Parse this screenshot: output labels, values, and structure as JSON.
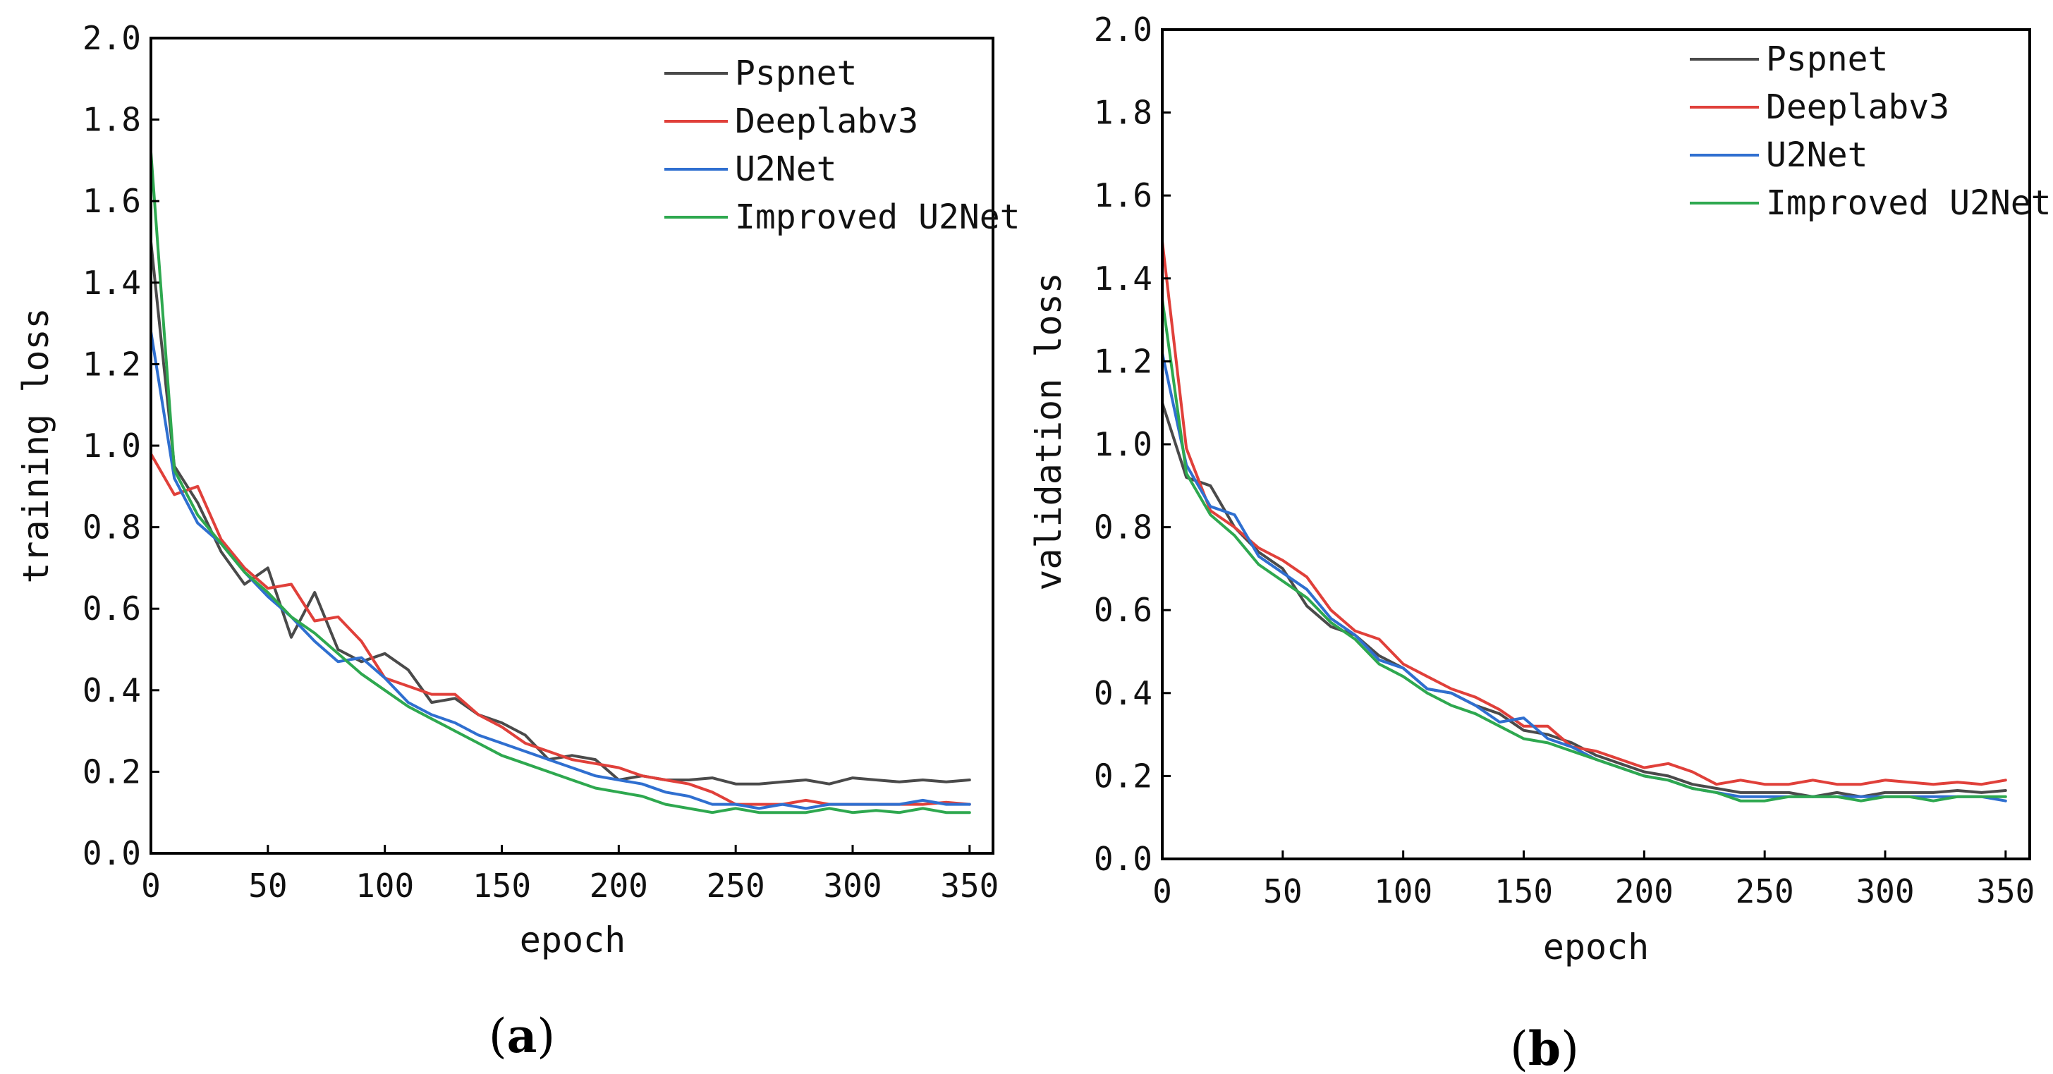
{
  "chart_data": [
    {
      "type": "line",
      "panel": "a",
      "caption": {
        "open": "(",
        "letter": "a",
        "close": ")"
      },
      "xlabel": "epoch",
      "ylabel": "training loss",
      "xlim": [
        0,
        360
      ],
      "ylim": [
        0,
        2.0
      ],
      "xticks": [
        0,
        50,
        100,
        150,
        200,
        250,
        300,
        350
      ],
      "yticks": [
        0.0,
        0.2,
        0.4,
        0.6,
        0.8,
        1.0,
        1.2,
        1.4,
        1.6,
        1.8,
        2.0
      ],
      "xtick_labels": [
        "0",
        "50",
        "100",
        "150",
        "200",
        "250",
        "300",
        "350"
      ],
      "ytick_labels": [
        "0.0",
        "0.2",
        "0.4",
        "0.6",
        "0.8",
        "1.0",
        "1.2",
        "1.4",
        "1.6",
        "1.8",
        "2.0"
      ],
      "legend_position": "top-right",
      "x": [
        0,
        10,
        20,
        30,
        40,
        50,
        60,
        70,
        80,
        90,
        100,
        110,
        120,
        130,
        140,
        150,
        160,
        170,
        180,
        190,
        200,
        210,
        220,
        230,
        240,
        250,
        260,
        270,
        280,
        290,
        300,
        310,
        320,
        330,
        340,
        350
      ],
      "series": [
        {
          "name": "Pspnet",
          "color": "#4a4a4a",
          "values": [
            1.5,
            0.95,
            0.86,
            0.74,
            0.66,
            0.7,
            0.53,
            0.64,
            0.5,
            0.47,
            0.49,
            0.45,
            0.37,
            0.38,
            0.34,
            0.32,
            0.29,
            0.23,
            0.24,
            0.23,
            0.18,
            0.19,
            0.18,
            0.18,
            0.185,
            0.17,
            0.17,
            0.175,
            0.18,
            0.17,
            0.185,
            0.18,
            0.175,
            0.18,
            0.175,
            0.18
          ]
        },
        {
          "name": "Deeplabv3",
          "color": "#e0403a",
          "values": [
            0.98,
            0.88,
            0.9,
            0.77,
            0.7,
            0.65,
            0.66,
            0.57,
            0.58,
            0.52,
            0.43,
            0.41,
            0.39,
            0.39,
            0.34,
            0.31,
            0.27,
            0.25,
            0.23,
            0.22,
            0.21,
            0.19,
            0.18,
            0.17,
            0.15,
            0.12,
            0.12,
            0.12,
            0.13,
            0.12,
            0.12,
            0.12,
            0.12,
            0.12,
            0.125,
            0.12
          ]
        },
        {
          "name": "U2Net",
          "color": "#2f6fd0",
          "values": [
            1.28,
            0.92,
            0.81,
            0.76,
            0.69,
            0.63,
            0.58,
            0.52,
            0.47,
            0.48,
            0.43,
            0.37,
            0.34,
            0.32,
            0.29,
            0.27,
            0.25,
            0.23,
            0.21,
            0.19,
            0.18,
            0.17,
            0.15,
            0.14,
            0.12,
            0.12,
            0.11,
            0.12,
            0.11,
            0.12,
            0.12,
            0.12,
            0.12,
            0.13,
            0.12,
            0.12
          ]
        },
        {
          "name": "Improved U2Net",
          "color": "#2ea84f",
          "values": [
            1.72,
            0.94,
            0.83,
            0.76,
            0.69,
            0.64,
            0.58,
            0.54,
            0.49,
            0.44,
            0.4,
            0.36,
            0.33,
            0.3,
            0.27,
            0.24,
            0.22,
            0.2,
            0.18,
            0.16,
            0.15,
            0.14,
            0.12,
            0.11,
            0.1,
            0.11,
            0.1,
            0.1,
            0.1,
            0.11,
            0.1,
            0.105,
            0.1,
            0.11,
            0.1,
            0.1
          ]
        }
      ]
    },
    {
      "type": "line",
      "panel": "b",
      "caption": {
        "open": "(",
        "letter": "b",
        "close": ")"
      },
      "xlabel": "epoch",
      "ylabel": "validation loss",
      "xlim": [
        0,
        360
      ],
      "ylim": [
        0,
        2.0
      ],
      "xticks": [
        0,
        50,
        100,
        150,
        200,
        250,
        300,
        350
      ],
      "yticks": [
        0.0,
        0.2,
        0.4,
        0.6,
        0.8,
        1.0,
        1.2,
        1.4,
        1.6,
        1.8,
        2.0
      ],
      "xtick_labels": [
        "0",
        "50",
        "100",
        "150",
        "200",
        "250",
        "300",
        "350"
      ],
      "ytick_labels": [
        "0.0",
        "0.2",
        "0.4",
        "0.6",
        "0.8",
        "1.0",
        "1.2",
        "1.4",
        "1.6",
        "1.8",
        "2.0"
      ],
      "legend_position": "top-right",
      "x": [
        0,
        10,
        20,
        30,
        40,
        50,
        60,
        70,
        80,
        90,
        100,
        110,
        120,
        130,
        140,
        150,
        160,
        170,
        180,
        190,
        200,
        210,
        220,
        230,
        240,
        250,
        260,
        270,
        280,
        290,
        300,
        310,
        320,
        330,
        340,
        350
      ],
      "series": [
        {
          "name": "Pspnet",
          "color": "#4a4a4a",
          "values": [
            1.1,
            0.92,
            0.9,
            0.8,
            0.74,
            0.7,
            0.61,
            0.56,
            0.54,
            0.49,
            0.46,
            0.41,
            0.4,
            0.37,
            0.35,
            0.31,
            0.3,
            0.28,
            0.25,
            0.23,
            0.21,
            0.2,
            0.18,
            0.17,
            0.16,
            0.16,
            0.16,
            0.15,
            0.16,
            0.15,
            0.16,
            0.16,
            0.16,
            0.165,
            0.16,
            0.165
          ]
        },
        {
          "name": "Deeplabv3",
          "color": "#e0403a",
          "values": [
            1.49,
            0.99,
            0.84,
            0.8,
            0.75,
            0.72,
            0.68,
            0.6,
            0.55,
            0.53,
            0.47,
            0.44,
            0.41,
            0.39,
            0.36,
            0.32,
            0.32,
            0.27,
            0.26,
            0.24,
            0.22,
            0.23,
            0.21,
            0.18,
            0.19,
            0.18,
            0.18,
            0.19,
            0.18,
            0.18,
            0.19,
            0.185,
            0.18,
            0.185,
            0.18,
            0.19
          ]
        },
        {
          "name": "U2Net",
          "color": "#2f6fd0",
          "values": [
            1.22,
            0.95,
            0.85,
            0.83,
            0.73,
            0.69,
            0.65,
            0.58,
            0.54,
            0.48,
            0.46,
            0.41,
            0.4,
            0.37,
            0.33,
            0.34,
            0.29,
            0.27,
            0.24,
            0.22,
            0.2,
            0.19,
            0.17,
            0.16,
            0.15,
            0.15,
            0.15,
            0.15,
            0.15,
            0.15,
            0.15,
            0.15,
            0.15,
            0.15,
            0.15,
            0.14
          ]
        },
        {
          "name": "Improved U2Net",
          "color": "#2ea84f",
          "values": [
            1.35,
            0.93,
            0.83,
            0.78,
            0.71,
            0.67,
            0.63,
            0.57,
            0.53,
            0.47,
            0.44,
            0.4,
            0.37,
            0.35,
            0.32,
            0.29,
            0.28,
            0.26,
            0.24,
            0.22,
            0.2,
            0.19,
            0.17,
            0.16,
            0.14,
            0.14,
            0.15,
            0.15,
            0.15,
            0.14,
            0.15,
            0.15,
            0.14,
            0.15,
            0.15,
            0.15
          ]
        }
      ]
    }
  ]
}
